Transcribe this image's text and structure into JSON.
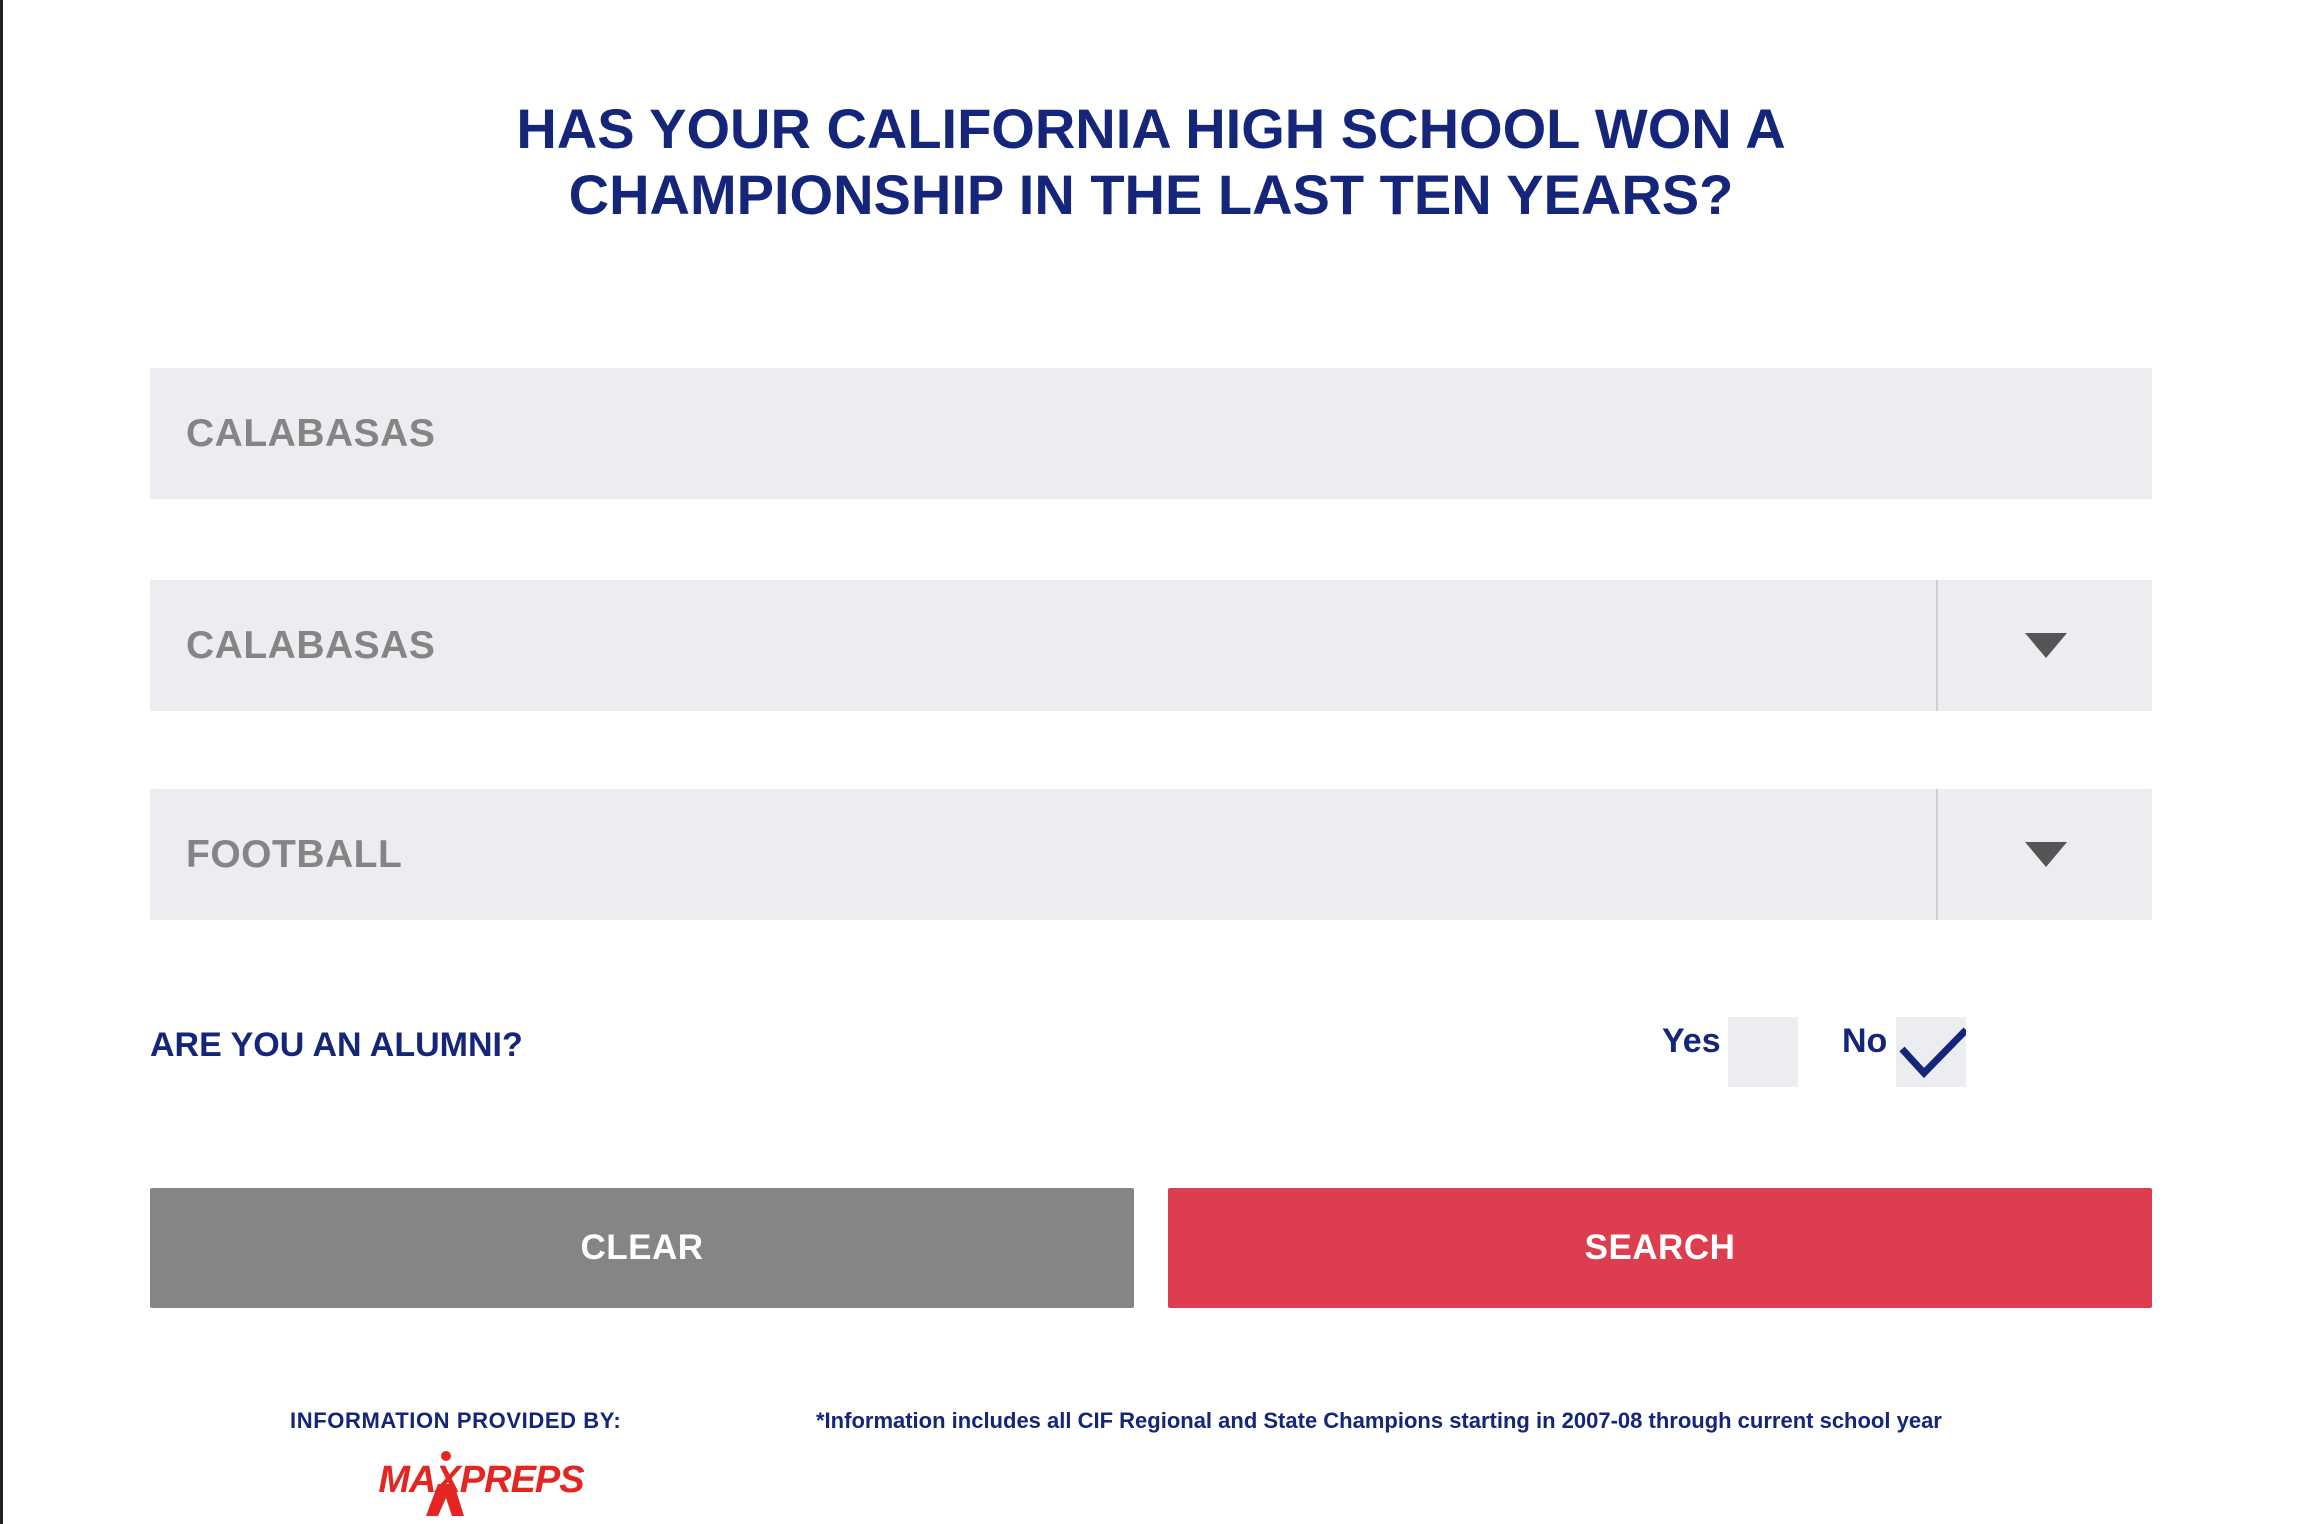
{
  "title": {
    "line1": "HAS YOUR CALIFORNIA HIGH SCHOOL WON A",
    "line2": "CHAMPIONSHIP IN THE LAST TEN YEARS?"
  },
  "form": {
    "school_input": {
      "value": "CALABASAS"
    },
    "city_select": {
      "value": "CALABASAS",
      "icon": "triangle-down-icon"
    },
    "sport_select": {
      "value": "FOOTBALL",
      "icon": "triangle-down-icon"
    },
    "alumni": {
      "label": "ARE YOU AN ALUMNI?",
      "yes_label": "Yes",
      "no_label": "No",
      "yes_checked": false,
      "no_checked": true
    },
    "clear_label": "CLEAR",
    "search_label": "SEARCH"
  },
  "footer": {
    "provided_by": "INFORMATION PROVIDED BY:",
    "logo_text": "MAXPREPS",
    "footnote": "*Information includes all CIF Regional and State Champions starting in 2007-08 through current school year"
  },
  "colors": {
    "title_navy": "#14257a",
    "field_bg": "#ecedf0",
    "field_text": "#858585",
    "clear_button": "#858585",
    "search_button": "#dc3e4f",
    "logo_red": "#e52521"
  }
}
